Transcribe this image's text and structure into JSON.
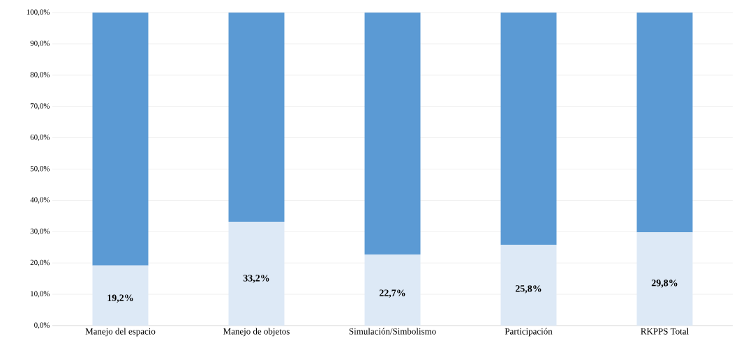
{
  "chart_data": {
    "type": "bar",
    "stacked": true,
    "grid": "y",
    "categories": [
      "Manejo del espacio",
      "Manejo de objetos",
      "Simulación/Simbolismo",
      "Participación",
      "RKPPS Total"
    ],
    "series": [
      {
        "color": "#dde9f6",
        "values": [
          19.2,
          33.2,
          22.7,
          25.8,
          29.8
        ],
        "value_labels": [
          "19,2%",
          "33,2%",
          "22,7%",
          "25,8%",
          "29,8%"
        ]
      },
      {
        "color": "#5b9ad4",
        "values": [
          80.8,
          66.8,
          77.3,
          74.2,
          70.2
        ]
      }
    ],
    "ylim": [
      0,
      100
    ],
    "yticks": [
      {
        "value": 0,
        "label": "0,0%"
      },
      {
        "value": 10,
        "label": "10,0%"
      },
      {
        "value": 20,
        "label": "20,0%"
      },
      {
        "value": 30,
        "label": "30,0%"
      },
      {
        "value": 40,
        "label": "40,0%"
      },
      {
        "value": 50,
        "label": "50,0%"
      },
      {
        "value": 60,
        "label": "60,0%"
      },
      {
        "value": 70,
        "label": "70,0%"
      },
      {
        "value": 80,
        "label": "80,0%"
      },
      {
        "value": 90,
        "label": "90,0%"
      },
      {
        "value": 100,
        "label": "100,0%"
      }
    ]
  }
}
